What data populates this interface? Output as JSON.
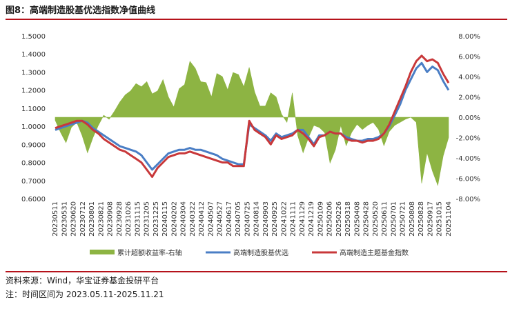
{
  "title": "图8：高端制造股基优选指数净值曲线",
  "footer": {
    "source": "资料来源：Wind，华宝证券基金投研平台",
    "note": "注：时间区间为 2023.05.11-2025.11.21"
  },
  "colors": {
    "excess": "#8db443",
    "stock_fund": "#4a7ec5",
    "theme_fund": "#c8383a",
    "rule": "#b5121b"
  },
  "chart_data": {
    "type": "line",
    "x_ticks": [
      "20230511",
      "20230531",
      "20230620",
      "20230712",
      "20230801",
      "20230821",
      "20230908",
      "20230928",
      "20231026",
      "20231115",
      "20231205",
      "20231225",
      "20240115",
      "20240202",
      "20240304",
      "20240322",
      "20240412",
      "20240507",
      "20240527",
      "20240617",
      "20240705",
      "20240725",
      "20240814",
      "20240903",
      "20240925",
      "20241022",
      "20241111",
      "20241129",
      "20241219",
      "20250109",
      "20250206",
      "20250226",
      "20250318",
      "20250408",
      "20250428",
      "20250520",
      "20250611",
      "20250701",
      "20250721",
      "20250808",
      "20250828",
      "20250917",
      "20251015",
      "20251104"
    ],
    "y_left": {
      "min": 0.6,
      "max": 1.5,
      "ticks": [
        "0.6000",
        "0.7000",
        "0.8000",
        "0.9000",
        "1.0000",
        "1.1000",
        "1.2000",
        "1.3000",
        "1.4000",
        "1.5000"
      ]
    },
    "y_right": {
      "min": -8,
      "max": 8,
      "ticks": [
        "-8.00%",
        "-6.00%",
        "-4.00%",
        "-2.00%",
        "0.00%",
        "2.00%",
        "4.00%",
        "6.00%",
        "8.00%"
      ]
    },
    "legend_position": "bottom",
    "series": [
      {
        "name": "累计超额收益率-右轴",
        "type": "area",
        "axis": "right",
        "values": [
          -0.3,
          -1.5,
          -2.5,
          -1.0,
          -0.5,
          -1.8,
          -3.5,
          -2.0,
          -0.8,
          0.2,
          -0.2,
          0.6,
          1.5,
          2.2,
          2.6,
          3.3,
          3.0,
          3.5,
          2.3,
          2.6,
          3.7,
          2.0,
          1.0,
          2.8,
          3.2,
          5.5,
          4.8,
          3.5,
          3.4,
          2.0,
          4.3,
          4.0,
          2.7,
          4.4,
          4.2,
          3.0,
          4.9,
          2.5,
          1.1,
          1.1,
          2.4,
          2.0,
          0.3,
          -0.5,
          2.4,
          -1.8,
          -3.5,
          -2.0,
          -0.8,
          -1.0,
          -1.5,
          -4.5,
          -3.2,
          -0.8,
          -2.8,
          -1.5,
          -0.7,
          -1.2,
          -0.8,
          -0.5,
          -1.2,
          -2.8,
          -1.4,
          -0.8,
          -0.5,
          -0.2,
          0.0,
          -0.5,
          -6.5,
          -3.5,
          -5.3,
          -6.7,
          -3.8,
          -2.0
        ]
      },
      {
        "name": "高端制造股基优选",
        "type": "line",
        "axis": "left",
        "values": [
          0.98,
          0.99,
          1.0,
          1.01,
          1.02,
          1.03,
          1.02,
          0.99,
          0.97,
          0.95,
          0.93,
          0.91,
          0.89,
          0.88,
          0.87,
          0.86,
          0.84,
          0.8,
          0.76,
          0.79,
          0.82,
          0.85,
          0.86,
          0.87,
          0.87,
          0.88,
          0.87,
          0.87,
          0.86,
          0.85,
          0.84,
          0.82,
          0.81,
          0.8,
          0.79,
          0.79,
          1.01,
          0.99,
          0.97,
          0.95,
          0.92,
          0.96,
          0.94,
          0.95,
          0.96,
          0.98,
          0.98,
          0.94,
          0.9,
          0.95,
          0.95,
          0.97,
          0.96,
          0.96,
          0.94,
          0.93,
          0.92,
          0.92,
          0.93,
          0.93,
          0.94,
          0.96,
          1.0,
          1.06,
          1.12,
          1.2,
          1.26,
          1.32,
          1.35,
          1.3,
          1.33,
          1.31,
          1.25,
          1.2
        ]
      },
      {
        "name": "高端制造主题基金指数",
        "type": "line",
        "axis": "left",
        "values": [
          0.99,
          1.0,
          1.01,
          1.02,
          1.03,
          1.03,
          1.01,
          0.98,
          0.96,
          0.93,
          0.91,
          0.89,
          0.87,
          0.86,
          0.84,
          0.82,
          0.8,
          0.76,
          0.72,
          0.77,
          0.8,
          0.83,
          0.84,
          0.85,
          0.85,
          0.86,
          0.85,
          0.84,
          0.83,
          0.82,
          0.81,
          0.8,
          0.8,
          0.78,
          0.78,
          0.78,
          1.03,
          0.98,
          0.96,
          0.94,
          0.9,
          0.95,
          0.93,
          0.94,
          0.95,
          0.98,
          0.96,
          0.93,
          0.89,
          0.94,
          0.95,
          0.97,
          0.96,
          0.96,
          0.93,
          0.92,
          0.92,
          0.91,
          0.92,
          0.92,
          0.93,
          0.96,
          1.01,
          1.08,
          1.15,
          1.22,
          1.3,
          1.36,
          1.39,
          1.36,
          1.37,
          1.35,
          1.29,
          1.24
        ]
      }
    ]
  }
}
